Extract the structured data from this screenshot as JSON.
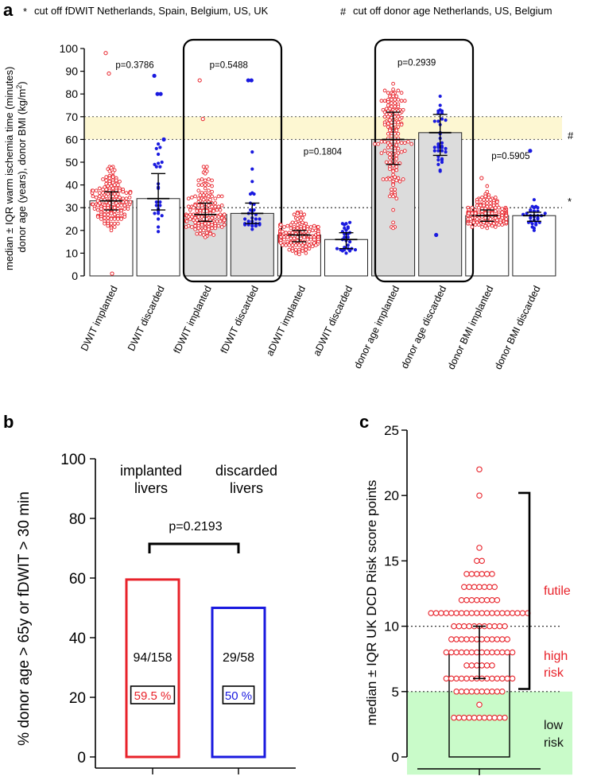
{
  "colors": {
    "implanted": "#e8222a",
    "discarded": "#1a1adf",
    "cutoff_band": "#fdf7d2",
    "low_risk": "#c9fbc9",
    "risk_label": "#e8222a"
  },
  "header": {
    "note1_symbol": "*",
    "note1_text": "cut off fDWIT Netherlands, Spain, Belgium, US, UK",
    "note2_symbol": "#",
    "note2_text": "cut off donor age Netherlands, US, Belgium"
  },
  "panel_a": {
    "letter": "a",
    "marker_hash": "#",
    "marker_star": "*"
  },
  "panel_b": {
    "letter": "b",
    "group_labels": [
      [
        "implanted",
        "livers"
      ],
      [
        "discarded",
        "livers"
      ]
    ]
  },
  "panel_c": {
    "letter": "c",
    "risk_labels": {
      "futile": "futile",
      "high": [
        "high",
        "risk"
      ],
      "low": [
        "low",
        "risk"
      ]
    }
  },
  "chart_data": [
    {
      "type": "bar",
      "title": "",
      "ylabel": "median ± IQR warm ischemia time (minutes) donor age (years), donor BMI (kg/m²)",
      "ylabel_lines": [
        "median ± IQR warm ischemia time (minutes)",
        "donor age (years), donor BMI (kg/m",
        "2",
        ")"
      ],
      "ylim": [
        0,
        100
      ],
      "yticks": [
        "0",
        "10",
        "20",
        "30",
        "40",
        "50",
        "60",
        "70",
        "80",
        "90",
        "100"
      ],
      "categories": [
        "DWIT implanted",
        "DWIT discarded",
        "fDWIT implanted",
        "fDWIT discarded",
        "aDWIT implanted",
        "aDWIT discarded",
        "donor age implanted",
        "donor age discarded",
        "donor BMI implanted",
        "donor BMI discarded"
      ],
      "values": [
        33,
        34,
        27,
        27.5,
        18,
        16,
        60,
        63,
        26.5,
        26.5
      ],
      "iqr": [
        [
          29,
          37
        ],
        [
          29,
          45
        ],
        [
          24,
          32
        ],
        [
          23,
          32
        ],
        [
          15,
          20
        ],
        [
          12,
          19
        ],
        [
          49,
          72
        ],
        [
          53,
          71
        ],
        [
          24,
          29
        ],
        [
          24,
          28
        ]
      ],
      "groups": [
        "implanted",
        "discarded",
        "implanted",
        "discarded",
        "implanted",
        "discarded",
        "implanted",
        "discarded",
        "implanted",
        "discarded"
      ],
      "shaded": [
        false,
        false,
        true,
        true,
        false,
        false,
        true,
        true,
        false,
        false
      ],
      "n": [
        158,
        24,
        158,
        31,
        158,
        28,
        158,
        35,
        158,
        30
      ],
      "spreads": [
        [
          17,
          50
        ],
        [
          18,
          62
        ],
        [
          15,
          50
        ],
        [
          20,
          58
        ],
        [
          8,
          29
        ],
        [
          9,
          26
        ],
        [
          20,
          87
        ],
        [
          42,
          84
        ],
        [
          20,
          40
        ],
        [
          19,
          36
        ]
      ],
      "outliers": [
        [
          98,
          89,
          1
        ],
        [
          88,
          80,
          80,
          60
        ],
        [
          86,
          69
        ],
        [
          86,
          86
        ],
        [],
        [],
        [],
        [
          18
        ],
        [
          43
        ],
        [
          55
        ]
      ],
      "p_values": [
        {
          "text": "p=0.3786",
          "y": 90
        },
        {
          "text": "p=0.5488",
          "y": 90
        },
        {
          "text": "p=0.1804",
          "y": 52
        },
        {
          "text": "p=0.2939",
          "y": 91
        },
        {
          "text": "p=0.5905",
          "y": 50
        }
      ],
      "cutoffs": {
        "fdwit_cutoff": 30,
        "donor_age_band": [
          60,
          70
        ]
      }
    },
    {
      "type": "bar",
      "title": "",
      "ylabel": "% donor age > 65y or fDWIT > 30 min",
      "ylim": [
        0,
        100
      ],
      "yticks": [
        "0",
        "20",
        "40",
        "60",
        "80",
        "100"
      ],
      "categories": [
        "implanted livers",
        "discarded livers"
      ],
      "values": [
        59.5,
        50
      ],
      "fractions": [
        "94/158",
        "29/58"
      ],
      "percent_labels": [
        "59.5 %",
        "50 %"
      ],
      "p_value": "p=0.2193"
    },
    {
      "type": "scatter",
      "title": "",
      "ylabel": "median ± IQR UK DCD Risk score points",
      "ylim": [
        0,
        25
      ],
      "yticks": [
        "0",
        "5",
        "10",
        "15",
        "20",
        "25"
      ],
      "median": 8,
      "iqr": [
        6,
        10
      ],
      "points": {
        "3": 11,
        "4": 1,
        "5": 10,
        "6": 14,
        "7": 6,
        "8": 14,
        "9": 12,
        "10": 11,
        "11": 20,
        "12": 8,
        "13": 7,
        "14": 6,
        "15": 2,
        "16": 1,
        "20": 1,
        "22": 1
      },
      "thresholds": {
        "low_high": 5,
        "high_futile": 10
      },
      "futile_bracket": [
        5.2,
        20.2
      ]
    }
  ]
}
